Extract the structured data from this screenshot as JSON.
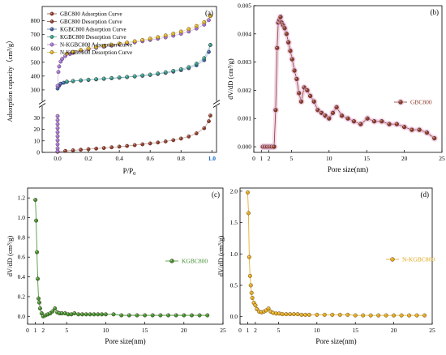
{
  "figure": {
    "colors": {
      "brown": "#8b3a2a",
      "brown_halo": "#e8b8d8",
      "blue": "#3a5fa8",
      "teal": "#2f9a8a",
      "violet": "#a070d8",
      "yellow": "#d8b020",
      "green": "#3e8e2a",
      "gold": "#e0a818",
      "axis": "#000000",
      "label_pink": "#c2185b",
      "label_blue": "#1565c0"
    }
  },
  "chart_data": [
    {
      "type": "scatter",
      "panel_label": "(a)",
      "xlabel": "P/P",
      "xlabel_sub": "0",
      "ylabel": "Adsorption capacity（cm³/g）",
      "x_ticks": [
        "0.0",
        "0.2",
        "0.4",
        "0.6",
        "0.8",
        "1.0"
      ],
      "y_ticks_upper": [
        "300",
        "400",
        "500",
        "600",
        "700",
        "800"
      ],
      "y_ticks_lower": [
        "0",
        "10",
        "20",
        "30"
      ],
      "xlim": [
        -0.1,
        1.03
      ],
      "y_upper_range": [
        235,
        880
      ],
      "y_lower_range": [
        0,
        38
      ],
      "legend": [
        {
          "label": "GBC800 Adsorption Curve",
          "color": "brown"
        },
        {
          "label": "GBC800 Desorption Curve",
          "color": "brown"
        },
        {
          "label": "KGBC800 Adsorption Curve",
          "color": "blue"
        },
        {
          "label": "KGBC800 Desorption Curve",
          "color": "teal"
        },
        {
          "label": "N-KGBC800 Adsorption Curve",
          "color": "violet"
        },
        {
          "label": "N-KGBC800 Desorption Curve",
          "color": "yellow"
        }
      ],
      "series": [
        {
          "color": "brown",
          "segment": "lower",
          "x": [
            0.0,
            0.05,
            0.1,
            0.15,
            0.2,
            0.25,
            0.3,
            0.35,
            0.4,
            0.45,
            0.5,
            0.55,
            0.6,
            0.65,
            0.7,
            0.75,
            0.8,
            0.85,
            0.9,
            0.95,
            0.98,
            0.99
          ],
          "y": [
            0.5,
            1.3,
            1.8,
            2.3,
            2.8,
            3.3,
            3.8,
            4.4,
            5.0,
            5.6,
            6.3,
            7.0,
            7.8,
            8.6,
            9.5,
            10.6,
            12.0,
            13.8,
            16.5,
            21.0,
            27.0,
            32.0
          ]
        },
        {
          "color": "blue",
          "segment": "upper",
          "x": [
            0.0,
            0.01,
            0.02,
            0.04,
            0.06,
            0.1,
            0.15,
            0.2,
            0.25,
            0.3,
            0.35,
            0.4,
            0.45,
            0.5,
            0.55,
            0.6,
            0.65,
            0.7,
            0.75,
            0.8,
            0.85,
            0.9,
            0.95,
            0.98,
            0.99
          ],
          "y": [
            310,
            330,
            345,
            352,
            358,
            363,
            368,
            372,
            376,
            380,
            384,
            388,
            392,
            397,
            402,
            408,
            415,
            423,
            432,
            443,
            457,
            478,
            515,
            575,
            625
          ]
        },
        {
          "color": "teal",
          "segment": "upper",
          "x": [
            0.99,
            0.95,
            0.9,
            0.85,
            0.8,
            0.75,
            0.7,
            0.65,
            0.6,
            0.55,
            0.5,
            0.45,
            0.4,
            0.35,
            0.3,
            0.25,
            0.2,
            0.15,
            0.1,
            0.06
          ],
          "y": [
            625,
            530,
            490,
            465,
            450,
            438,
            428,
            419,
            411,
            405,
            399,
            394,
            390,
            386,
            382,
            378,
            374,
            370,
            365,
            360
          ]
        },
        {
          "color": "violet",
          "segment": "upper",
          "x": [
            0.0,
            0.005,
            0.01,
            0.02,
            0.03,
            0.05,
            0.08,
            0.1,
            0.15,
            0.2,
            0.25,
            0.3,
            0.35,
            0.4,
            0.45,
            0.5,
            0.55,
            0.6,
            0.65,
            0.7,
            0.75,
            0.8,
            0.85,
            0.9,
            0.95,
            0.98,
            0.99
          ],
          "y": [
            330,
            430,
            470,
            505,
            525,
            545,
            560,
            568,
            582,
            594,
            604,
            612,
            620,
            628,
            636,
            644,
            652,
            661,
            670,
            680,
            692,
            706,
            722,
            744,
            772,
            805,
            835
          ]
        },
        {
          "color": "yellow",
          "segment": "upper",
          "x": [
            0.99,
            0.95,
            0.9,
            0.85,
            0.8,
            0.75,
            0.7,
            0.65,
            0.6,
            0.55,
            0.5,
            0.45,
            0.4,
            0.35,
            0.3,
            0.25,
            0.2,
            0.15,
            0.1,
            0.06
          ],
          "y": [
            835,
            790,
            762,
            740,
            722,
            707,
            694,
            682,
            671,
            661,
            652,
            643,
            635,
            627,
            619,
            610,
            600,
            589,
            575,
            562
          ]
        },
        {
          "color": "violet",
          "segment": "lower",
          "x": [
            0.0,
            0.0,
            0.0,
            0.0,
            0.0,
            0.0,
            0.0,
            0.0,
            0.0,
            0.0
          ],
          "y": [
            1,
            3.5,
            7,
            10.5,
            14,
            17.5,
            21,
            24.5,
            28,
            31.5
          ]
        }
      ]
    },
    {
      "type": "line",
      "panel_label": "(b)",
      "series_label": "GBC800",
      "color": "brown",
      "halo": "brown_halo",
      "xlabel": "Pore size(nm)",
      "ylabel": "dV/dD (cm³/g)",
      "x_ticks": [
        "0",
        "1",
        "2",
        "5",
        "10",
        "15",
        "20",
        "25"
      ],
      "x_tick_values": [
        0,
        1,
        2,
        5,
        10,
        15,
        20,
        25
      ],
      "y_ticks": [
        "0.000",
        "0.001",
        "0.002",
        "0.003",
        "0.004",
        "0.005"
      ],
      "y_tick_values": [
        0,
        0.001,
        0.002,
        0.003,
        0.004,
        0.005
      ],
      "xlim": [
        0,
        25
      ],
      "ylim": [
        -0.0002,
        0.005
      ],
      "x": [
        1.2,
        1.5,
        1.8,
        2.1,
        2.4,
        2.7,
        2.9,
        3.1,
        3.25,
        3.4,
        3.55,
        3.7,
        3.9,
        4.1,
        4.35,
        4.6,
        4.85,
        5.1,
        5.4,
        5.7,
        6.0,
        6.3,
        6.7,
        7.1,
        7.5,
        8.0,
        8.5,
        9.0,
        9.5,
        10.0,
        10.5,
        11.0,
        11.7,
        12.5,
        13.3,
        14.2,
        15.1,
        16.0,
        17.0,
        18.0,
        19.0,
        20.0,
        21.0,
        22.0,
        23.0,
        24.0
      ],
      "y": [
        0.0,
        0.0,
        0.0,
        0.0,
        0.0,
        0.0,
        0.0013,
        0.0035,
        0.0044,
        0.0045,
        0.0046,
        0.0044,
        0.0043,
        0.0042,
        0.004,
        0.0037,
        0.0034,
        0.0031,
        0.0027,
        0.0024,
        0.0019,
        0.0016,
        0.0021,
        0.002,
        0.0018,
        0.0016,
        0.0013,
        0.0012,
        0.0011,
        0.001,
        0.0012,
        0.0014,
        0.0011,
        0.001,
        0.0009,
        0.0008,
        0.001,
        0.0009,
        0.0009,
        0.0008,
        0.0008,
        0.0007,
        0.0006,
        0.0006,
        0.0005,
        0.0003
      ]
    },
    {
      "type": "line",
      "panel_label": "(c)",
      "series_label": "KGBC800",
      "color": "green",
      "xlabel": "Pore size(nm)",
      "ylabel": "dV/dD (cm³/g)",
      "x_ticks": [
        "0",
        "1",
        "2",
        "5",
        "10",
        "15",
        "20",
        "25"
      ],
      "x_tick_values": [
        0,
        1,
        2,
        5,
        10,
        15,
        20,
        25
      ],
      "y_ticks": [
        "0.0",
        "0.2",
        "0.4",
        "0.6",
        "0.8",
        "1.0",
        "1.2"
      ],
      "y_tick_values": [
        0,
        0.2,
        0.4,
        0.6,
        0.8,
        1.0,
        1.2
      ],
      "xlim": [
        0,
        25
      ],
      "ylim": [
        -0.08,
        1.3
      ],
      "x": [
        1.0,
        1.1,
        1.2,
        1.3,
        1.4,
        1.5,
        1.6,
        1.8,
        2.0,
        2.3,
        2.6,
        2.9,
        3.2,
        3.5,
        3.8,
        4.1,
        4.4,
        4.8,
        5.2,
        5.6,
        6.0,
        6.5,
        7.0,
        7.5,
        8.0,
        8.5,
        9.0,
        9.5,
        10.0,
        11.0,
        12.0,
        13.0,
        14.0,
        15.0,
        16.0,
        17.0,
        18.0,
        19.0,
        20.0,
        21.0,
        22.0,
        23.0
      ],
      "y": [
        1.18,
        0.97,
        0.65,
        0.38,
        0.18,
        0.14,
        0.08,
        0.03,
        0.0,
        0.01,
        0.02,
        0.03,
        0.05,
        0.08,
        0.04,
        0.03,
        0.03,
        0.03,
        0.02,
        0.02,
        0.03,
        0.02,
        0.02,
        0.02,
        0.02,
        0.02,
        0.02,
        0.02,
        0.02,
        0.02,
        0.01,
        0.01,
        0.01,
        0.01,
        0.01,
        0.01,
        0.01,
        0.01,
        0.01,
        0.01,
        0.01,
        0.01
      ]
    },
    {
      "type": "line",
      "panel_label": "(d)",
      "series_label": "N-KGBC800",
      "color": "gold",
      "xlabel": "Pore size(nm)",
      "ylabel": "dV/dD (cm³/g)",
      "x_ticks": [
        "0",
        "1",
        "2",
        "5",
        "10",
        "15",
        "20",
        "25"
      ],
      "x_tick_values": [
        0,
        1,
        2,
        5,
        10,
        15,
        20,
        25
      ],
      "y_ticks": [
        "0.0",
        "0.5",
        "1.0",
        "1.5",
        "2.0"
      ],
      "y_tick_values": [
        0,
        0.5,
        1.0,
        1.5,
        2.0
      ],
      "xlim": [
        0,
        25
      ],
      "ylim": [
        -0.12,
        2.05
      ],
      "x": [
        1.0,
        1.1,
        1.2,
        1.3,
        1.4,
        1.5,
        1.6,
        1.8,
        2.0,
        2.2,
        2.5,
        2.8,
        3.1,
        3.4,
        3.7,
        4.0,
        4.3,
        4.7,
        5.1,
        5.5,
        6.0,
        6.5,
        7.0,
        7.5,
        8.0,
        8.5,
        9.0,
        10.0,
        11.0,
        12.0,
        13.0,
        14.0,
        15.0,
        16.0,
        17.0,
        18.0,
        19.0,
        20.0,
        21.0,
        22.0,
        23.0,
        24.0
      ],
      "y": [
        1.98,
        1.65,
        0.95,
        0.65,
        0.5,
        0.38,
        0.3,
        0.22,
        0.18,
        0.12,
        0.08,
        0.07,
        0.08,
        0.1,
        0.13,
        0.08,
        0.06,
        0.05,
        0.05,
        0.04,
        0.04,
        0.04,
        0.04,
        0.04,
        0.03,
        0.03,
        0.03,
        0.03,
        0.03,
        0.03,
        0.03,
        0.03,
        0.02,
        0.02,
        0.02,
        0.02,
        0.02,
        0.02,
        0.02,
        0.02,
        0.02,
        0.02
      ]
    }
  ]
}
